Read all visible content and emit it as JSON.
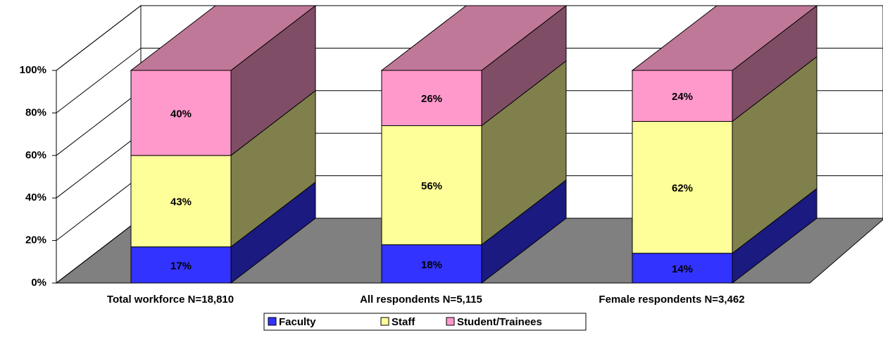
{
  "chart_data": {
    "type": "bar3d_stacked",
    "categories": [
      "Total workforce N=18,810",
      "All respondents N=5,115",
      "Female respondents N=3,462"
    ],
    "series": [
      {
        "name": "Faculty",
        "color": "#3333ff",
        "side_color": "#1a1a80",
        "values": [
          17,
          18,
          14
        ],
        "value_labels": [
          "17%",
          "18%",
          "14%"
        ]
      },
      {
        "name": "Staff",
        "color": "#ffff99",
        "side_color": "#80804d",
        "values": [
          43,
          56,
          62
        ],
        "value_labels": [
          "43%",
          "56%",
          "62%"
        ]
      },
      {
        "name": "Student/Trainees",
        "color": "#ff99cc",
        "side_color": "#804d66",
        "top_color": "#c07898",
        "values": [
          40,
          26,
          24
        ],
        "value_labels": [
          "40%",
          "26%",
          "24%"
        ]
      }
    ],
    "ylim": [
      0,
      100
    ],
    "yticks": [
      {
        "value": 0,
        "label": "0%"
      },
      {
        "value": 20,
        "label": "20%"
      },
      {
        "value": 40,
        "label": "40%"
      },
      {
        "value": 60,
        "label": "60%"
      },
      {
        "value": 80,
        "label": "80%"
      },
      {
        "value": 100,
        "label": "100%"
      }
    ],
    "grid": true,
    "legend": "bottom"
  }
}
